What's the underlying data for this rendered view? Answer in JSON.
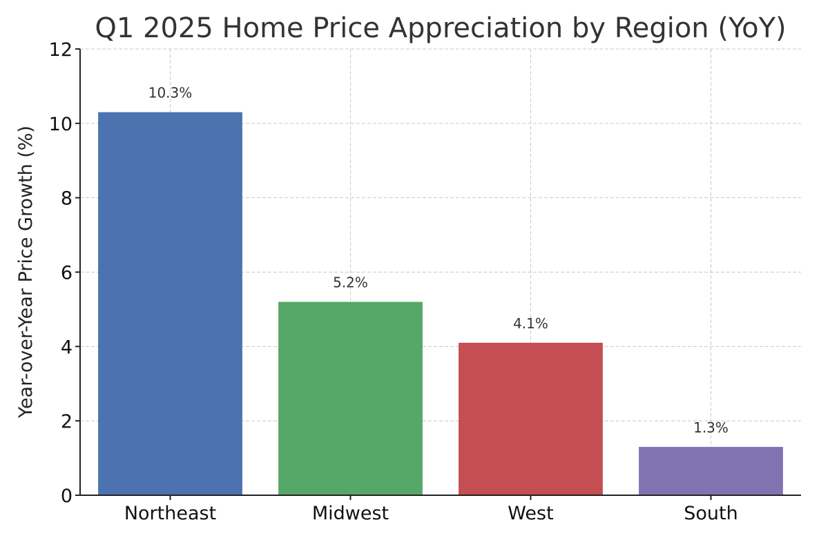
{
  "chart_data": {
    "type": "bar",
    "title": "Q1 2025 Home Price Appreciation by Region (YoY)",
    "xlabel": "",
    "ylabel": "Year-over-Year Price Growth (%)",
    "categories": [
      "Northeast",
      "Midwest",
      "West",
      "South"
    ],
    "values": [
      10.3,
      5.2,
      4.1,
      1.3
    ],
    "data_labels": [
      "10.3%",
      "5.2%",
      "4.1%",
      "1.3%"
    ],
    "colors": [
      "#4c72b0",
      "#55a868",
      "#c44e52",
      "#8172b2"
    ],
    "ylim": [
      0,
      12
    ],
    "yticks": [
      0,
      2,
      4,
      6,
      8,
      10,
      12
    ],
    "ytick_labels": [
      "0",
      "2",
      "4",
      "6",
      "8",
      "10",
      "12"
    ],
    "grid": true,
    "legend": "none"
  }
}
